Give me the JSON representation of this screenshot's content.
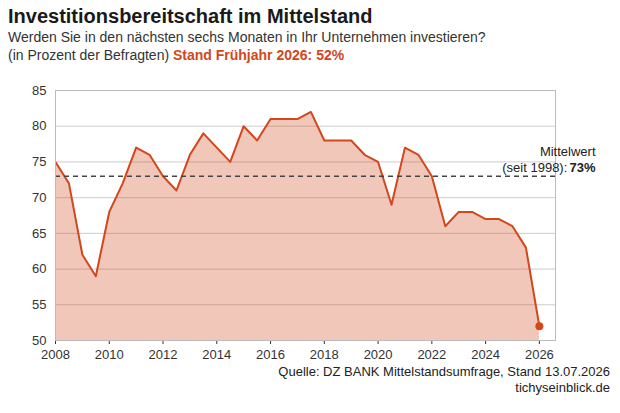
{
  "chart_data": {
    "type": "area",
    "title": "Investitionsbereitschaft im Mittelstand",
    "subtitle": [
      "Werden Sie in den nächsten sechs Monaten in Ihr Unternehmen investieren?",
      "(in Prozent der Befragten)"
    ],
    "annotation": "Stand Frühjahr 2026: 52%",
    "source": "Quelle: DZ BANK Mittelstandsumfrage, Stand 13.07.2026",
    "credit": "tichyseinblick.de",
    "x": [
      2008.0,
      2008.5,
      2009.0,
      2009.5,
      2010.0,
      2010.5,
      2011.0,
      2011.5,
      2012.0,
      2012.5,
      2013.0,
      2013.5,
      2014.0,
      2014.5,
      2015.0,
      2015.5,
      2016.0,
      2016.5,
      2017.0,
      2017.5,
      2018.0,
      2018.5,
      2019.0,
      2019.5,
      2020.0,
      2020.5,
      2021.0,
      2021.5,
      2022.0,
      2022.5,
      2023.0,
      2023.5,
      2024.0,
      2024.5,
      2025.0,
      2025.5,
      2026.0
    ],
    "values": [
      75,
      72,
      62,
      59,
      68,
      72,
      77,
      76,
      73,
      71,
      76,
      79,
      77,
      75,
      80,
      78,
      81,
      81,
      81,
      82,
      78,
      78,
      78,
      76,
      75,
      69,
      77,
      76,
      73,
      66,
      68,
      68,
      67,
      67,
      66,
      63,
      52
    ],
    "color": "#d2471c",
    "marker": "last",
    "mean_line": {
      "value": 73,
      "label": [
        "Mittelwert",
        "(seit 1998):",
        "73%"
      ]
    },
    "xlim": [
      2008,
      2026.6
    ],
    "xticks": [
      2008,
      2010,
      2012,
      2014,
      2016,
      2018,
      2020,
      2022,
      2024,
      2026
    ],
    "ylim": [
      50,
      85
    ],
    "yticks": [
      50,
      55,
      60,
      65,
      70,
      75,
      80,
      85
    ],
    "grid": true
  }
}
